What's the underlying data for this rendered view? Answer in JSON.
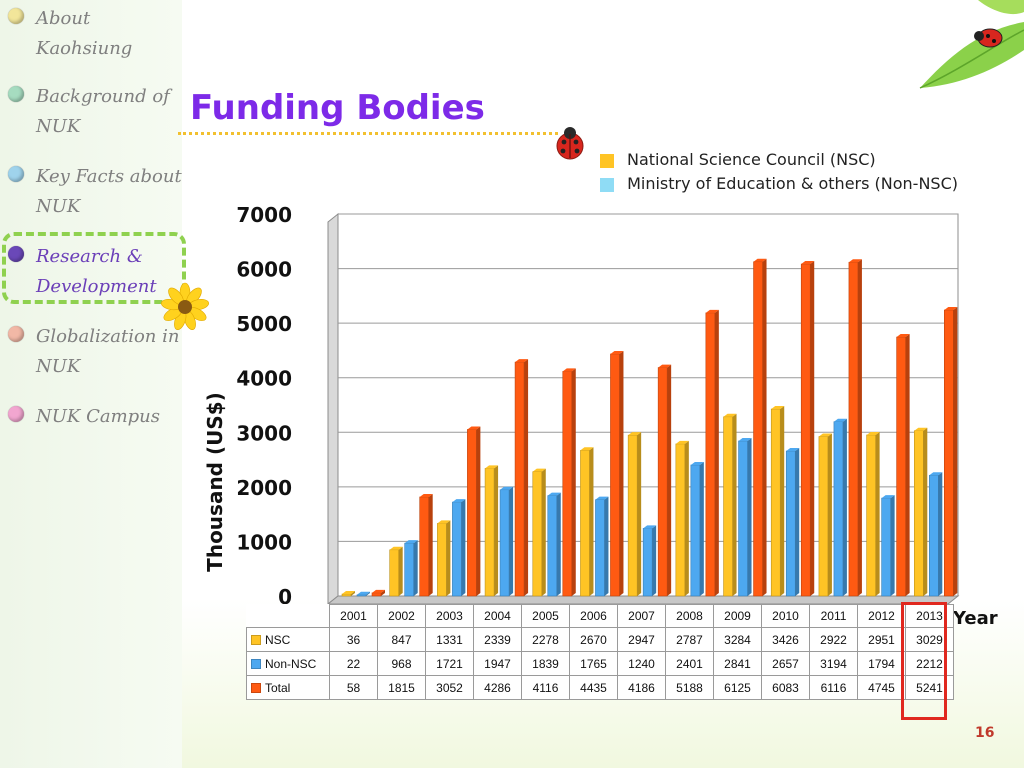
{
  "sidebar": {
    "items": [
      {
        "label": "About Kaohsiung",
        "color": "#f2e69a"
      },
      {
        "label": "Background of NUK",
        "color": "#a6dcc0"
      },
      {
        "label": "Key Facts about NUK",
        "color": "#9fd3ec"
      },
      {
        "label": "Research & Development",
        "color": "#6a48b8",
        "active": true
      },
      {
        "label": "Globalization in NUK",
        "color": "#f2b8a6"
      },
      {
        "label": "NUK Campus",
        "color": "#f2a6d0"
      }
    ]
  },
  "slide": {
    "title": "Funding Bodies",
    "page_number": "16"
  },
  "colors": {
    "nsc": "#ffc425",
    "non_nsc": "#4da8f0",
    "total": "#ff5a12",
    "title": "#7d2ae8",
    "highlight": "#e0281f"
  },
  "chart_data": {
    "type": "bar",
    "legend": [
      {
        "name": "National Science Council (NSC)",
        "color": "#ffc425"
      },
      {
        "name": " Ministry of Education & others (Non-NSC)",
        "color": "#8fdcf5"
      }
    ],
    "categories": [
      "2001",
      "2002",
      "2003",
      "2004",
      "2005",
      "2006",
      "2007",
      "2008",
      "2009",
      "2010",
      "2011",
      "2012",
      "2013"
    ],
    "series": [
      {
        "name": "NSC",
        "values": [
          36,
          847,
          1331,
          2339,
          2278,
          2670,
          2947,
          2787,
          3284,
          3426,
          2922,
          2951,
          3029
        ]
      },
      {
        "name": "Non-NSC",
        "values": [
          22,
          968,
          1721,
          1947,
          1839,
          1765,
          1240,
          2401,
          2841,
          2657,
          3194,
          1794,
          2212
        ]
      },
      {
        "name": "Total",
        "values": [
          58,
          1815,
          3052,
          4286,
          4116,
          4435,
          4186,
          5188,
          6125,
          6083,
          6116,
          4745,
          5241
        ]
      }
    ],
    "ylabel": "Thousand (US$)",
    "xlabel": "Year",
    "ylim": [
      0,
      7000
    ],
    "yticks": [
      "0",
      "1000",
      "2000",
      "3000",
      "4000",
      "5000",
      "6000",
      "7000"
    ],
    "highlighted_category": "2013",
    "grid": true
  }
}
